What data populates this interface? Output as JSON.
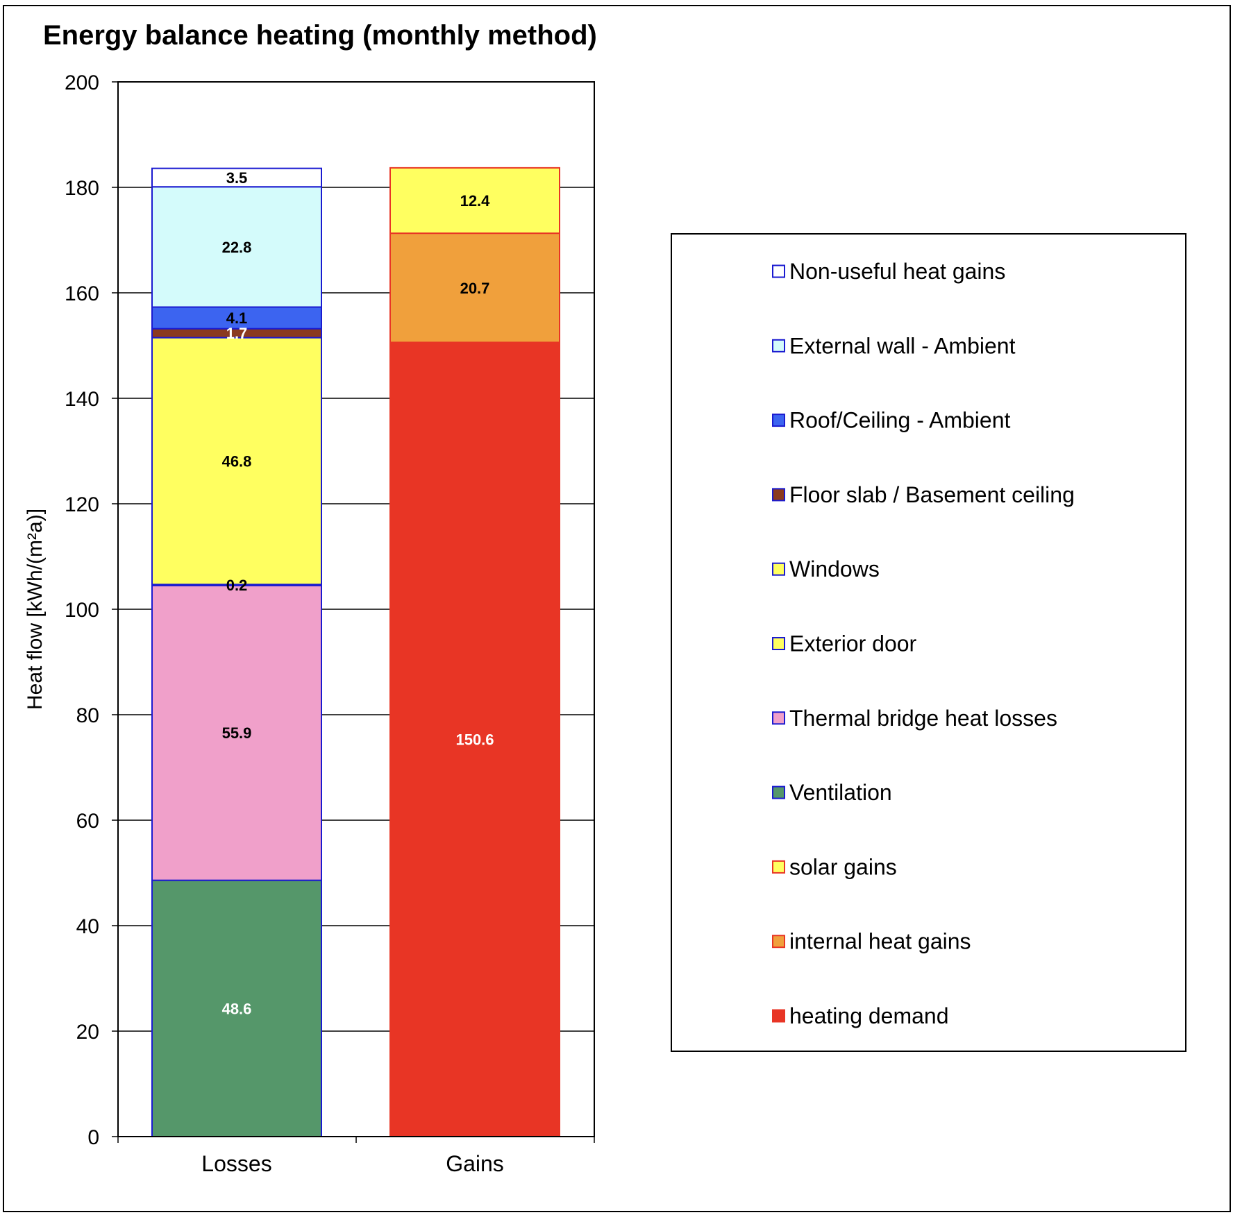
{
  "chart_data": {
    "type": "bar",
    "stacked": true,
    "title": "Energy balance heating (monthly method)",
    "ylabel": "Heat flow [kWh/(m²a)]",
    "xlabel": "",
    "ylim": [
      0,
      200
    ],
    "yticks": [
      0,
      20,
      40,
      60,
      80,
      100,
      120,
      140,
      160,
      180,
      200
    ],
    "grid": true,
    "legend_position": "right",
    "categories": [
      "Losses",
      "Gains"
    ],
    "series": [
      {
        "name": "Ventilation",
        "values": [
          48.6,
          null
        ],
        "label": "48.6",
        "fill": "#55976a",
        "stroke": "#1a1ad0",
        "legend_stroke": "#1a1ad0",
        "label_color": "#ffffff"
      },
      {
        "name": "Thermal bridge heat losses",
        "values": [
          55.9,
          null
        ],
        "label": "55.9",
        "fill": "#f0a0ca",
        "stroke": "#1a1ad0",
        "legend_stroke": "#1a1ad0",
        "label_color": "#000000"
      },
      {
        "name": "Exterior door",
        "values": [
          0.2,
          null
        ],
        "label": "0.2",
        "fill": "#1a1ad0",
        "stroke": "#1a1ad0",
        "legend_fill": "#ffff60",
        "legend_stroke": "#1a1ad0",
        "label_color": "#000000"
      },
      {
        "name": "Windows",
        "values": [
          46.8,
          null
        ],
        "label": "46.8",
        "fill": "#ffff60",
        "stroke": "#1a1ad0",
        "legend_fill": "#ffff60",
        "legend_stroke": "#1a1ad0",
        "label_color": "#000000"
      },
      {
        "name": "Floor slab / Basement ceiling",
        "values": [
          1.7,
          null
        ],
        "label": "1.7",
        "fill": "#8b3a1f",
        "stroke": "#1a1ad0",
        "legend_stroke": "#1a1ad0",
        "label_color": "#ffffff"
      },
      {
        "name": "Roof/Ceiling - Ambient",
        "values": [
          4.1,
          null
        ],
        "label": "4.1",
        "fill": "#3c64f0",
        "stroke": "#1a1ad0",
        "legend_stroke": "#1a1ad0",
        "label_color": "#000000"
      },
      {
        "name": "External wall - Ambient",
        "values": [
          22.8,
          null
        ],
        "label": "22.8",
        "fill": "#d4fbfb",
        "stroke": "#1a1ad0",
        "legend_stroke": "#1a1ad0",
        "label_color": "#000000"
      },
      {
        "name": "Non-useful heat gains",
        "values": [
          3.5,
          null
        ],
        "label": "3.5",
        "fill": "#ffffff",
        "stroke": "#1a1ad0",
        "legend_stroke": "#1a1ad0",
        "label_color": "#000000"
      },
      {
        "name": "heating demand",
        "values": [
          null,
          150.6
        ],
        "label": "150.6",
        "fill": "#e83525",
        "stroke": "#e83525",
        "legend_stroke": "#e83525",
        "label_color": "#ffffff"
      },
      {
        "name": "internal heat gains",
        "values": [
          null,
          20.7
        ],
        "label": "20.7",
        "fill": "#f0a03c",
        "stroke": "#e83525",
        "legend_stroke": "#e83525",
        "label_color": "#000000"
      },
      {
        "name": "solar gains",
        "values": [
          null,
          12.4
        ],
        "label": "12.4",
        "fill": "#ffff60",
        "stroke": "#e83525",
        "legend_stroke": "#e83525",
        "label_color": "#000000"
      }
    ],
    "legend_order": [
      "Non-useful heat gains",
      "External wall - Ambient",
      "Roof/Ceiling - Ambient",
      "Floor slab / Basement ceiling",
      "Windows",
      "Exterior door",
      "Thermal bridge heat losses",
      "Ventilation",
      "solar gains",
      "internal heat gains",
      "heating demand"
    ]
  }
}
